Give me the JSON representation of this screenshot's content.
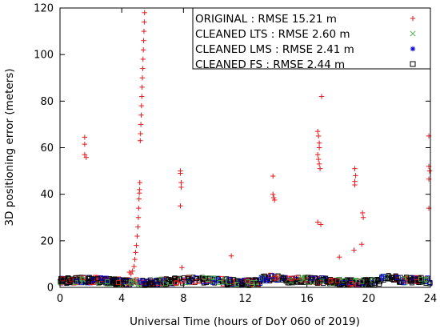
{
  "chart_data": {
    "type": "scatter",
    "title": "",
    "xlabel": "Universal Time (hours of DoY 060 of 2019)",
    "ylabel": "3D positioning error (meters)",
    "xlim": [
      0,
      24
    ],
    "ylim": [
      0,
      120
    ],
    "xticks": [
      0,
      4,
      8,
      12,
      16,
      20,
      24
    ],
    "yticks": [
      0,
      20,
      40,
      60,
      80,
      100,
      120
    ],
    "grid": false,
    "legend_position": "top-right",
    "series": [
      {
        "name": "ORIGINAL : RMSE 15.21 m",
        "marker": "plus",
        "color": "#e41a1c",
        "points": [
          [
            1.6,
            64.5
          ],
          [
            1.6,
            61.5
          ],
          [
            1.6,
            57.0
          ],
          [
            1.7,
            55.8
          ],
          [
            4.5,
            6.5
          ],
          [
            4.6,
            5.8
          ],
          [
            4.7,
            7.0
          ],
          [
            4.8,
            9.0
          ],
          [
            4.85,
            12.0
          ],
          [
            4.9,
            15.0
          ],
          [
            4.95,
            18.0
          ],
          [
            5.0,
            22.0
          ],
          [
            5.05,
            26.0
          ],
          [
            5.08,
            30.0
          ],
          [
            5.1,
            34.0
          ],
          [
            5.12,
            38.0
          ],
          [
            5.14,
            40.5
          ],
          [
            5.15,
            42.0
          ],
          [
            5.17,
            45.0
          ],
          [
            5.2,
            63.0
          ],
          [
            5.22,
            66.0
          ],
          [
            5.24,
            70.0
          ],
          [
            5.26,
            74.0
          ],
          [
            5.28,
            78.0
          ],
          [
            5.3,
            82.0
          ],
          [
            5.32,
            86.0
          ],
          [
            5.34,
            90.0
          ],
          [
            5.36,
            94.0
          ],
          [
            5.38,
            98.0
          ],
          [
            5.4,
            102.0
          ],
          [
            5.42,
            106.0
          ],
          [
            5.44,
            110.0
          ],
          [
            5.46,
            114.0
          ],
          [
            5.48,
            118.0
          ],
          [
            7.8,
            50.0
          ],
          [
            7.8,
            49.0
          ],
          [
            7.85,
            45.0
          ],
          [
            7.85,
            43.0
          ],
          [
            7.8,
            35.0
          ],
          [
            7.9,
            8.5
          ],
          [
            11.1,
            13.5
          ],
          [
            13.8,
            47.8
          ],
          [
            13.8,
            40.0
          ],
          [
            13.85,
            38.5
          ],
          [
            13.9,
            37.5
          ],
          [
            16.7,
            67.0
          ],
          [
            16.75,
            65.0
          ],
          [
            16.8,
            62.0
          ],
          [
            16.8,
            60.0
          ],
          [
            16.7,
            57.0
          ],
          [
            16.75,
            55.0
          ],
          [
            16.8,
            53.0
          ],
          [
            16.85,
            51.0
          ],
          [
            16.7,
            28.0
          ],
          [
            16.9,
            27.0
          ],
          [
            16.95,
            82.0
          ],
          [
            18.1,
            13.0
          ],
          [
            19.1,
            51.0
          ],
          [
            19.15,
            48.0
          ],
          [
            19.1,
            45.5
          ],
          [
            19.1,
            44.0
          ],
          [
            19.05,
            16.0
          ],
          [
            19.6,
            32.0
          ],
          [
            19.65,
            30.0
          ],
          [
            19.55,
            18.5
          ],
          [
            23.9,
            65.0
          ],
          [
            23.9,
            52.0
          ],
          [
            23.95,
            50.0
          ],
          [
            23.9,
            46.5
          ],
          [
            23.9,
            34.0
          ]
        ]
      },
      {
        "name": "CLEANED LTS : RMSE 2.60 m",
        "marker": "x",
        "color": "#4daf4a",
        "points": []
      },
      {
        "name": "CLEANED LMS : RMSE 2.41 m",
        "marker": "star",
        "color": "#0000cc",
        "points": []
      },
      {
        "name": "CLEANED FS : RMSE 2.44 m",
        "marker": "square",
        "color": "#000000",
        "points": []
      }
    ]
  }
}
